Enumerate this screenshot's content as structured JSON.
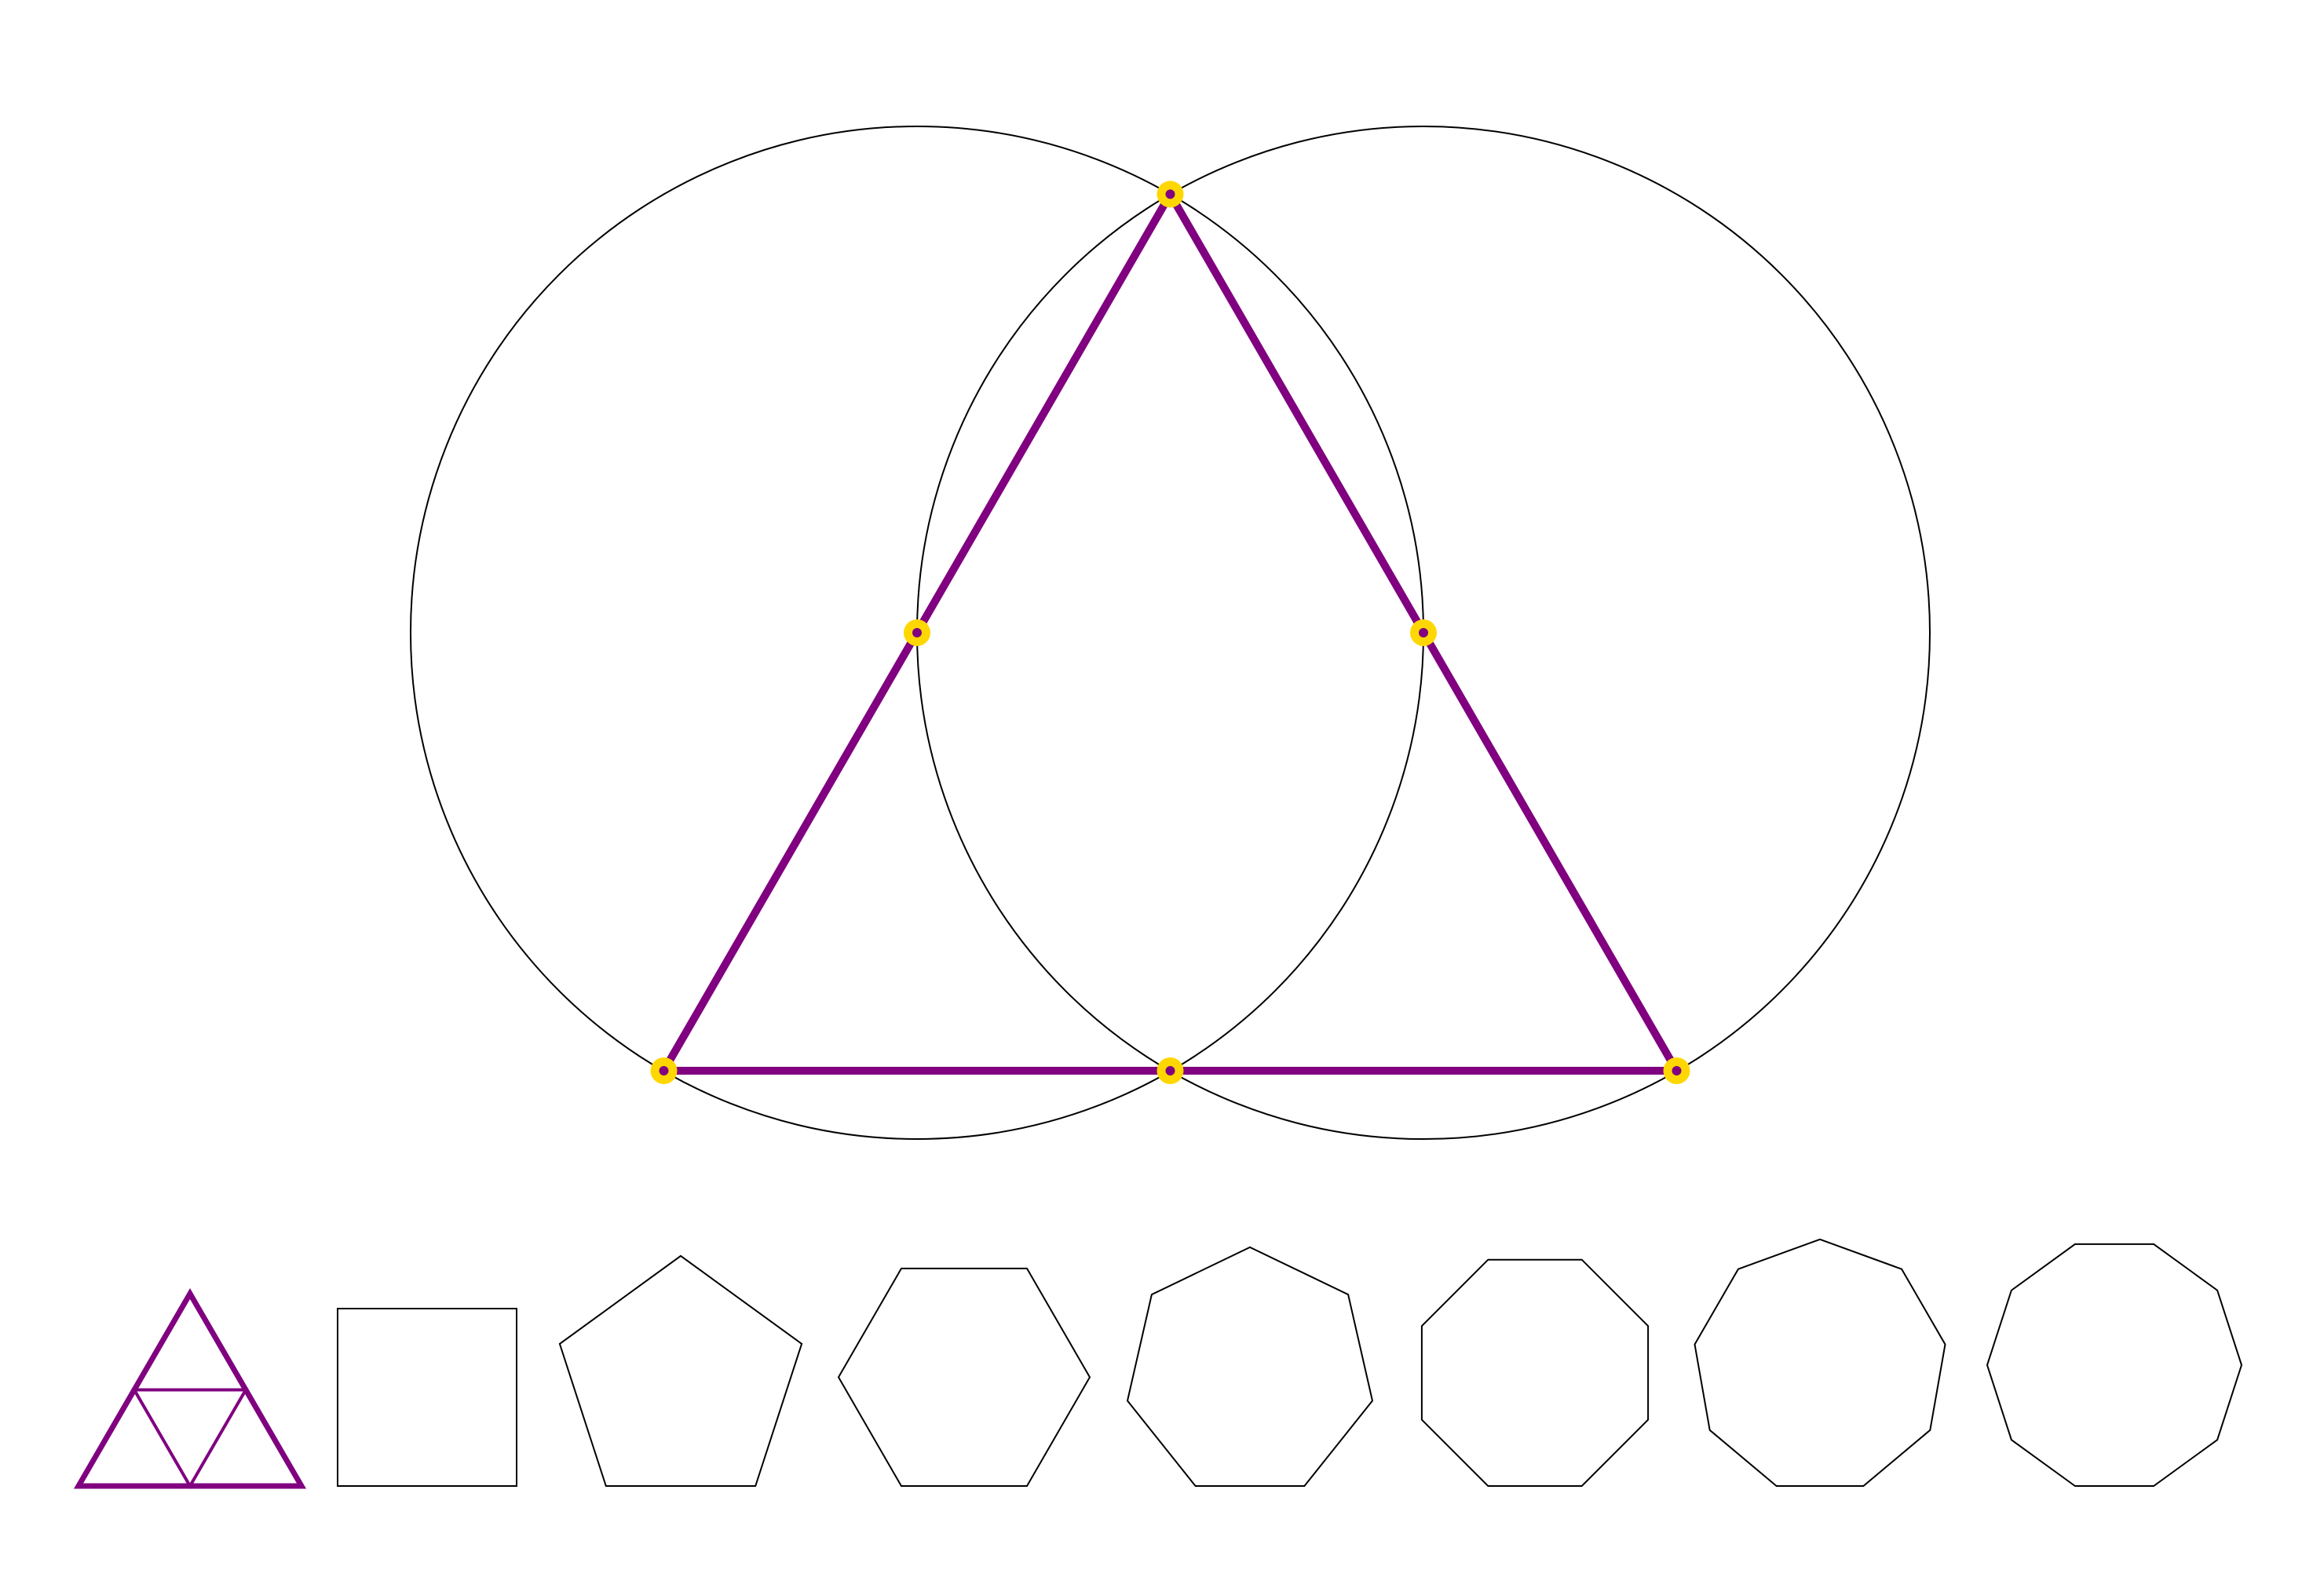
{
  "colors": {
    "background": "#ffffff",
    "circle_stroke": "#000000",
    "triangle_stroke": "#800080",
    "point_fill": "#ffd700",
    "point_center": "#800080",
    "polygon_stroke": "#000000",
    "selected_polygon_stroke": "#800080"
  },
  "construction": {
    "circles": [
      {
        "name": "left-circle"
      },
      {
        "name": "right-circle"
      }
    ],
    "triangle": {
      "name": "equilateral-triangle"
    },
    "points": [
      {
        "name": "apex-point"
      },
      {
        "name": "left-mid-point"
      },
      {
        "name": "right-mid-point"
      },
      {
        "name": "bottom-left-point"
      },
      {
        "name": "bottom-center-point"
      },
      {
        "name": "bottom-right-point"
      }
    ]
  },
  "polygon_palette": {
    "selected_sides": 3,
    "items": [
      {
        "name": "triangle",
        "sides": 3
      },
      {
        "name": "square",
        "sides": 4
      },
      {
        "name": "pentagon",
        "sides": 5
      },
      {
        "name": "hexagon",
        "sides": 6
      },
      {
        "name": "heptagon",
        "sides": 7
      },
      {
        "name": "octagon",
        "sides": 8
      },
      {
        "name": "nonagon",
        "sides": 9
      },
      {
        "name": "decagon",
        "sides": 10
      }
    ]
  }
}
